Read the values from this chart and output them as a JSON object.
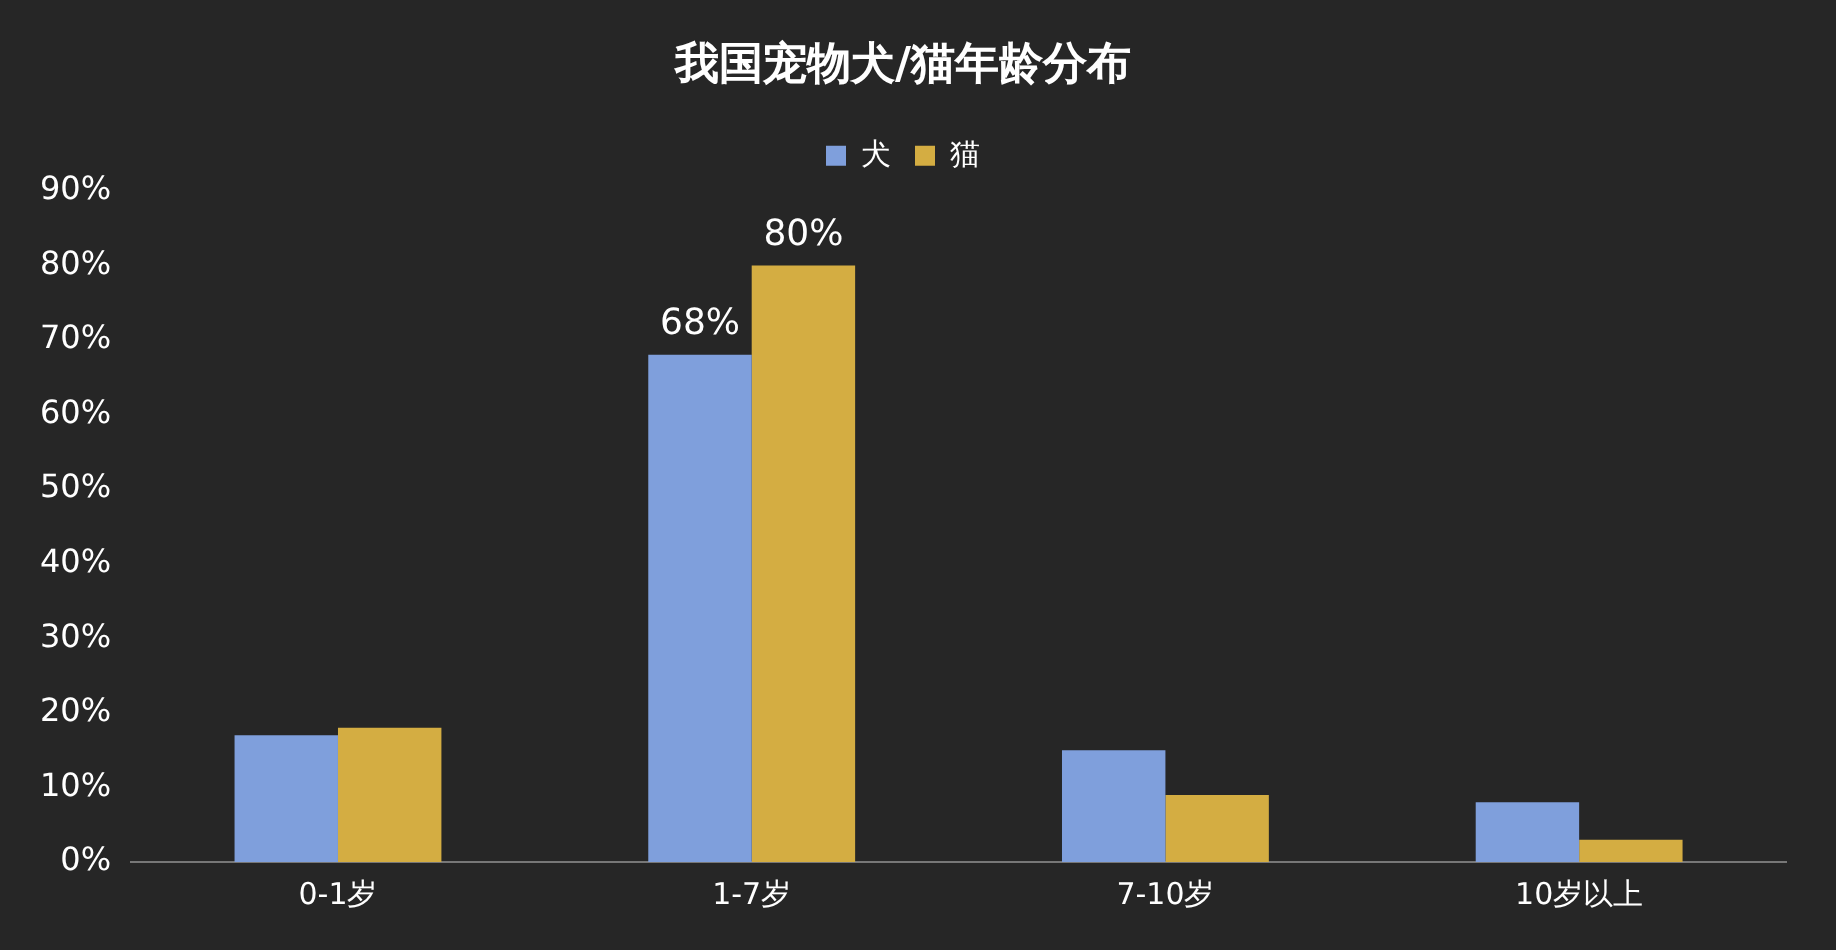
{
  "chart_data": {
    "type": "bar",
    "title": "我国宠物犬/猫年龄分布",
    "categories": [
      "0-1岁",
      "1-7岁",
      "7-10岁",
      "10岁以上"
    ],
    "series": [
      {
        "name": "犬",
        "color": "#7f9fdc",
        "values": [
          17,
          68,
          15,
          8
        ],
        "value_labels": [
          null,
          "68%",
          null,
          null
        ]
      },
      {
        "name": "猫",
        "color": "#d4ad42",
        "values": [
          18,
          80,
          9,
          3
        ],
        "value_labels": [
          null,
          "80%",
          null,
          null
        ]
      }
    ],
    "ylim": [
      0,
      90
    ],
    "yticks": [
      {
        "value": 0,
        "label": "0%"
      },
      {
        "value": 10,
        "label": "10%"
      },
      {
        "value": 20,
        "label": "20%"
      },
      {
        "value": 30,
        "label": "30%"
      },
      {
        "value": 40,
        "label": "40%"
      },
      {
        "value": 50,
        "label": "50%"
      },
      {
        "value": 60,
        "label": "60%"
      },
      {
        "value": 70,
        "label": "70%"
      },
      {
        "value": 80,
        "label": "80%"
      },
      {
        "value": 90,
        "label": "90%"
      }
    ],
    "grid": false,
    "legend": "top"
  }
}
